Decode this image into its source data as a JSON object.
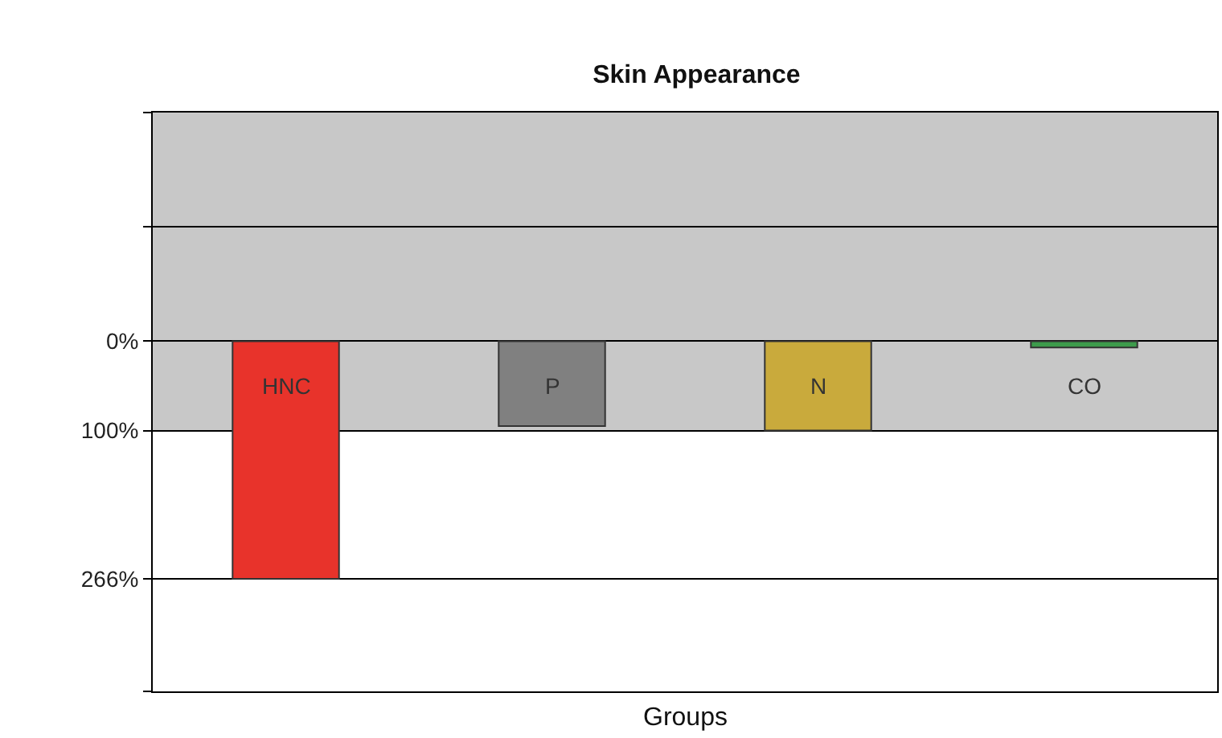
{
  "chart_data": {
    "type": "bar",
    "title": "Skin Appearance",
    "xlabel": "Groups",
    "categories": [
      "HNC",
      "P",
      "N",
      "CO"
    ],
    "values": [
      266,
      95,
      100,
      7
    ],
    "colors": [
      "#e8332b",
      "#808080",
      "#c9aa3c",
      "#3d9b4b"
    ],
    "ylim": [
      392,
      -256
    ],
    "yticks": [
      {
        "value": -256,
        "label": null
      },
      {
        "value": -128,
        "label": null
      },
      {
        "value": 0,
        "label": "0%"
      },
      {
        "value": 100,
        "label": "100%"
      },
      {
        "value": 266,
        "label": "266%"
      },
      {
        "value": 392,
        "label": null
      }
    ],
    "bands": [
      {
        "axis": "y",
        "from": -256,
        "to": 100,
        "color": "#c8c8c8"
      }
    ],
    "grid": "y",
    "tick_labels": "y"
  }
}
